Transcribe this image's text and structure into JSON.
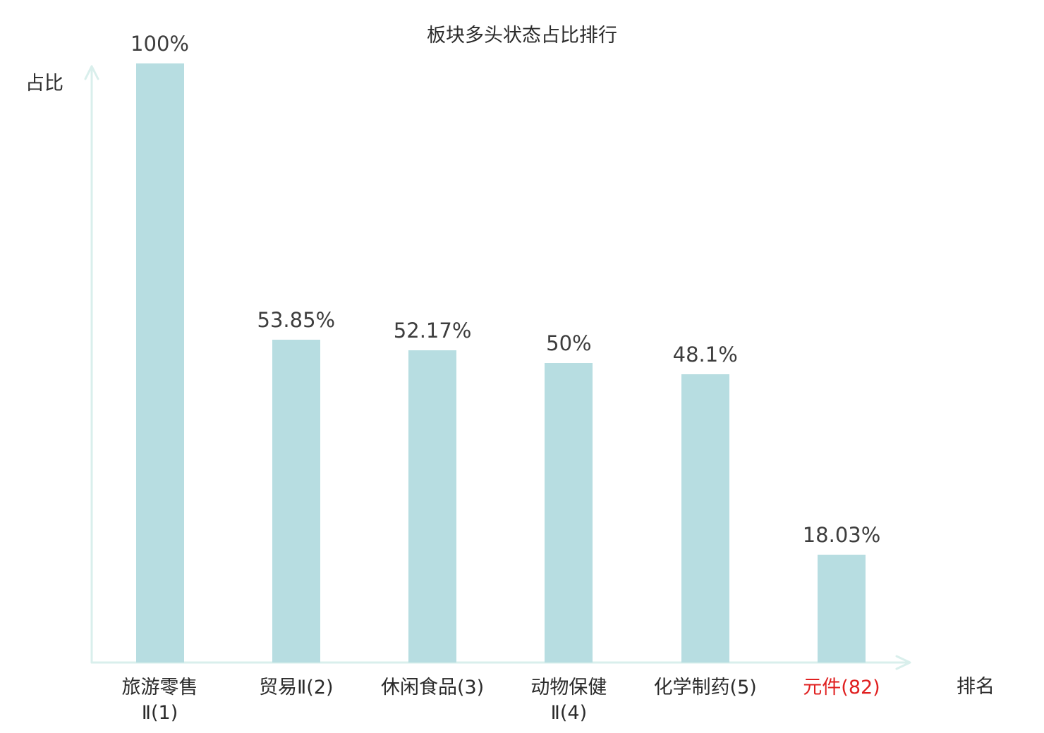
{
  "chart_data": {
    "type": "bar",
    "title": "板块多头状态占比排行",
    "xlabel": "排名",
    "ylabel": "占比",
    "categories": [
      "旅游零售Ⅱ(1)",
      "贸易Ⅱ(2)",
      "休闲食品(3)",
      "动物保健Ⅱ(4)",
      "化学制药(5)",
      "元件(82)"
    ],
    "category_lines": [
      [
        "旅游零售",
        "Ⅱ(1)"
      ],
      [
        "贸易Ⅱ(2)"
      ],
      [
        "休闲食品(3)"
      ],
      [
        "动物保健",
        "Ⅱ(4)"
      ],
      [
        "化学制药(5)"
      ],
      [
        "元件(82)"
      ]
    ],
    "values": [
      100,
      53.85,
      52.17,
      50,
      48.1,
      18.03
    ],
    "value_labels": [
      "100%",
      "53.85%",
      "52.17%",
      "50%",
      "48.1%",
      "18.03%"
    ],
    "highlight_index": 5,
    "ylim": [
      0,
      100
    ],
    "grid": false,
    "legend": false,
    "colors": {
      "bar_fill": "#b7dde1",
      "axis": "#d9efec",
      "value_label": "#3d3d3d",
      "category_label": "#2b2b2b",
      "highlight_category_label": "#e02020",
      "title": "#2b2b2b",
      "background": "#ffffff"
    }
  }
}
